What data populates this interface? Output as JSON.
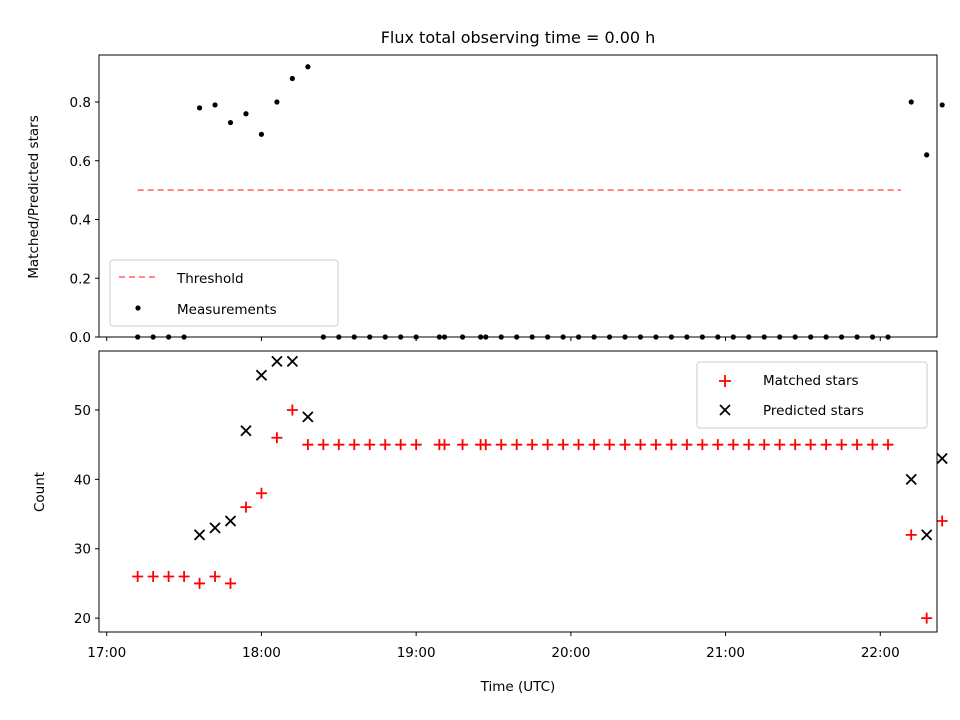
{
  "chart_data": [
    {
      "type": "scatter",
      "title": "Flux total observing time = 0.00 h",
      "xlabel": "",
      "ylabel": "Matched/Predicted stars",
      "xlim": [
        "16:57",
        "22:22"
      ],
      "ylim": [
        0.0,
        0.96
      ],
      "yticks": [
        "0.0",
        "0.2",
        "0.4",
        "0.6",
        "0.8"
      ],
      "legend_position": "lower-left",
      "threshold": {
        "name": "Threshold",
        "x": [
          "17:12",
          "22:08"
        ],
        "y": 0.5,
        "color": "#ff7777"
      },
      "series": [
        {
          "name": "Measurements",
          "color": "#000000",
          "points": [
            [
              "17:12",
              0.0
            ],
            [
              "17:18",
              0.0
            ],
            [
              "17:24",
              0.0
            ],
            [
              "17:30",
              0.0
            ],
            [
              "17:36",
              0.78
            ],
            [
              "17:42",
              0.79
            ],
            [
              "17:48",
              0.73
            ],
            [
              "17:54",
              0.76
            ],
            [
              "18:00",
              0.69
            ],
            [
              "18:06",
              0.8
            ],
            [
              "18:12",
              0.88
            ],
            [
              "18:18",
              0.92
            ],
            [
              "18:24",
              0.0
            ],
            [
              "18:30",
              0.0
            ],
            [
              "18:36",
              0.0
            ],
            [
              "18:42",
              0.0
            ],
            [
              "18:48",
              0.0
            ],
            [
              "18:54",
              0.0
            ],
            [
              "19:00",
              0.0
            ],
            [
              "19:09",
              0.0
            ],
            [
              "19:11",
              0.0
            ],
            [
              "19:18",
              0.0
            ],
            [
              "19:25",
              0.0
            ],
            [
              "19:27",
              0.0
            ],
            [
              "19:33",
              0.0
            ],
            [
              "19:39",
              0.0
            ],
            [
              "19:45",
              0.0
            ],
            [
              "19:51",
              0.0
            ],
            [
              "19:57",
              0.0
            ],
            [
              "20:03",
              0.0
            ],
            [
              "20:09",
              0.0
            ],
            [
              "20:15",
              0.0
            ],
            [
              "20:21",
              0.0
            ],
            [
              "20:27",
              0.0
            ],
            [
              "20:33",
              0.0
            ],
            [
              "20:39",
              0.0
            ],
            [
              "20:45",
              0.0
            ],
            [
              "20:51",
              0.0
            ],
            [
              "20:57",
              0.0
            ],
            [
              "21:03",
              0.0
            ],
            [
              "21:09",
              0.0
            ],
            [
              "21:15",
              0.0
            ],
            [
              "21:21",
              0.0
            ],
            [
              "21:27",
              0.0
            ],
            [
              "21:33",
              0.0
            ],
            [
              "21:39",
              0.0
            ],
            [
              "21:45",
              0.0
            ],
            [
              "21:51",
              0.0
            ],
            [
              "21:57",
              0.0
            ],
            [
              "22:03",
              0.0
            ],
            [
              "22:12",
              0.8
            ],
            [
              "22:18",
              0.62
            ],
            [
              "22:24",
              0.79
            ]
          ]
        }
      ]
    },
    {
      "type": "scatter",
      "title": "",
      "xlabel": "Time (UTC)",
      "ylabel": "Count",
      "xlim": [
        "16:57",
        "22:22"
      ],
      "ylim": [
        18,
        58.5
      ],
      "xticks": [
        "17:00",
        "18:00",
        "19:00",
        "20:00",
        "21:00",
        "22:00"
      ],
      "yticks": [
        "20",
        "30",
        "40",
        "50"
      ],
      "legend_position": "top-right",
      "series": [
        {
          "name": "Matched stars",
          "marker": "+",
          "color": "#ff0000",
          "points": [
            [
              "17:12",
              26
            ],
            [
              "17:18",
              26
            ],
            [
              "17:24",
              26
            ],
            [
              "17:30",
              26
            ],
            [
              "17:36",
              25
            ],
            [
              "17:42",
              26
            ],
            [
              "17:48",
              25
            ],
            [
              "17:54",
              36
            ],
            [
              "18:00",
              38
            ],
            [
              "18:06",
              46
            ],
            [
              "18:12",
              50
            ],
            [
              "18:18",
              45
            ],
            [
              "18:24",
              45
            ],
            [
              "18:30",
              45
            ],
            [
              "18:36",
              45
            ],
            [
              "18:42",
              45
            ],
            [
              "18:48",
              45
            ],
            [
              "18:54",
              45
            ],
            [
              "19:00",
              45
            ],
            [
              "19:09",
              45
            ],
            [
              "19:11",
              45
            ],
            [
              "19:18",
              45
            ],
            [
              "19:25",
              45
            ],
            [
              "19:27",
              45
            ],
            [
              "19:33",
              45
            ],
            [
              "19:39",
              45
            ],
            [
              "19:45",
              45
            ],
            [
              "19:51",
              45
            ],
            [
              "19:57",
              45
            ],
            [
              "20:03",
              45
            ],
            [
              "20:09",
              45
            ],
            [
              "20:15",
              45
            ],
            [
              "20:21",
              45
            ],
            [
              "20:27",
              45
            ],
            [
              "20:33",
              45
            ],
            [
              "20:39",
              45
            ],
            [
              "20:45",
              45
            ],
            [
              "20:51",
              45
            ],
            [
              "20:57",
              45
            ],
            [
              "21:03",
              45
            ],
            [
              "21:09",
              45
            ],
            [
              "21:15",
              45
            ],
            [
              "21:21",
              45
            ],
            [
              "21:27",
              45
            ],
            [
              "21:33",
              45
            ],
            [
              "21:39",
              45
            ],
            [
              "21:45",
              45
            ],
            [
              "21:51",
              45
            ],
            [
              "21:57",
              45
            ],
            [
              "22:03",
              45
            ],
            [
              "22:12",
              32
            ],
            [
              "22:18",
              20
            ],
            [
              "22:24",
              34
            ]
          ]
        },
        {
          "name": "Predicted stars",
          "marker": "x",
          "color": "#000000",
          "points": [
            [
              "17:36",
              32
            ],
            [
              "17:42",
              33
            ],
            [
              "17:48",
              34
            ],
            [
              "17:54",
              47
            ],
            [
              "18:00",
              55
            ],
            [
              "18:06",
              57
            ],
            [
              "18:12",
              57
            ],
            [
              "18:18",
              49
            ],
            [
              "22:12",
              40
            ],
            [
              "22:18",
              32
            ],
            [
              "22:24",
              43
            ]
          ]
        }
      ]
    }
  ]
}
